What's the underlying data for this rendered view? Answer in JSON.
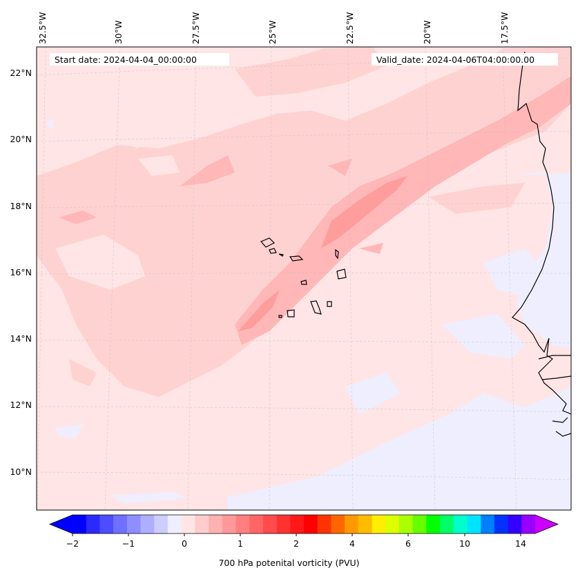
{
  "annotations": {
    "start_date": "Start date: 2024-04-04_00:00:00",
    "valid_date": "Valid_date: 2024-04-06T04:00:00.00"
  },
  "map": {
    "extent": {
      "lon_min": -33.0,
      "lon_max": -16.0,
      "lat_min": 9.0,
      "lat_max": 22.8
    },
    "lon_labels": [
      "32.5°W",
      "30°W",
      "27.5°W",
      "25°W",
      "22.5°W",
      "20°W",
      "17.5°W"
    ],
    "lat_labels": [
      "22°N",
      "20°N",
      "18°N",
      "16°N",
      "14°N",
      "12°N",
      "10°N"
    ],
    "background_color": "#ffe5e5",
    "field_levels": [
      {
        "name": "low-negative",
        "color": "#eeeeff"
      },
      {
        "name": "low-positive",
        "color": "#ffd2d2"
      },
      {
        "name": "mid-positive",
        "color": "#ffb7b7"
      },
      {
        "name": "high-positive",
        "color": "#ff9c9c"
      }
    ]
  },
  "colorbar": {
    "title": "700 hPa potenital vorticity (PVU)",
    "tick_labels": [
      "−2",
      "−1",
      "0",
      "1",
      "2",
      "4",
      "6",
      "10",
      "14"
    ],
    "colors": [
      "#0000ff",
      "#2a2aff",
      "#4d4dff",
      "#7070ff",
      "#8e8eff",
      "#aeaeff",
      "#cdcdff",
      "#eeeeff",
      "#ffe5e5",
      "#ffcccc",
      "#ffb2b2",
      "#ff9999",
      "#ff7f7f",
      "#ff6565",
      "#ff4c4c",
      "#ff3232",
      "#ff1919",
      "#ff0000",
      "#ff3300",
      "#ff6600",
      "#ff9900",
      "#ffbb00",
      "#ffee00",
      "#ddff00",
      "#aaff00",
      "#66ff00",
      "#00ff00",
      "#00ff66",
      "#00ffcc",
      "#00e5ff",
      "#0080ff",
      "#0033ff",
      "#3300ff",
      "#9900ff"
    ],
    "extend_min_color": "#0000ff",
    "extend_max_color": "#cc00ff"
  }
}
